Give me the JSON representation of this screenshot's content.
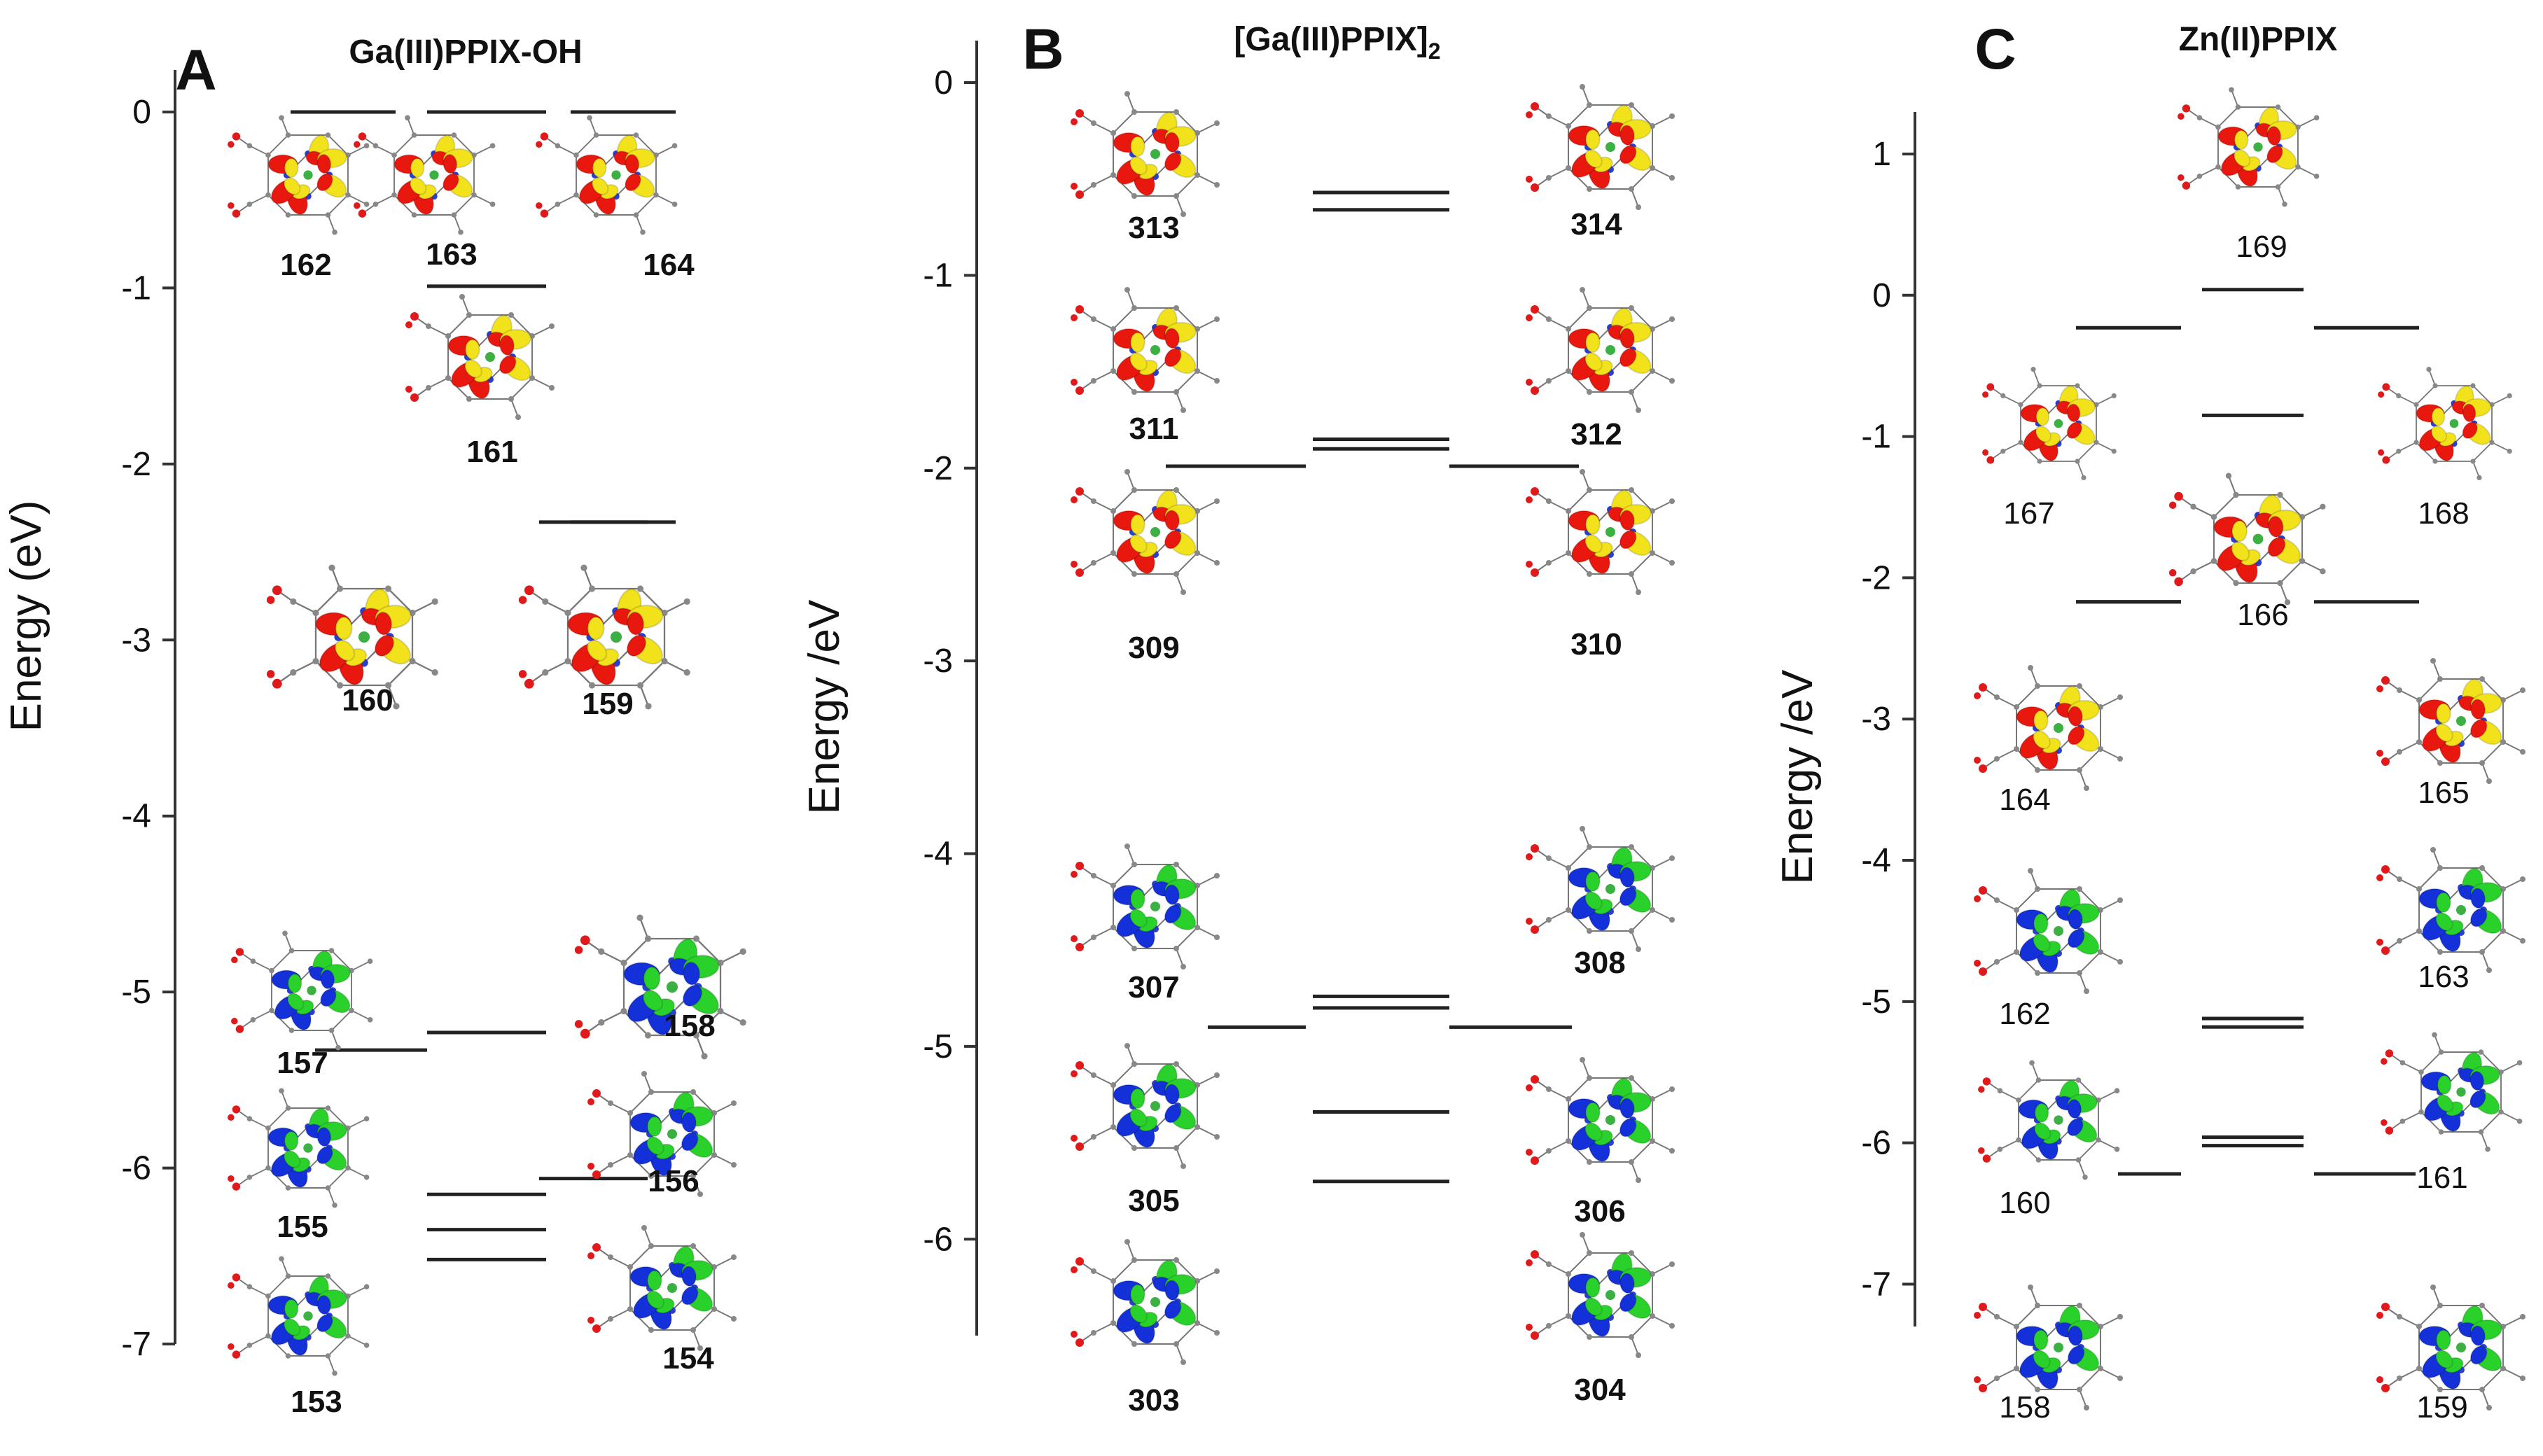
{
  "figure": {
    "panels": [
      {
        "letter": "A",
        "title": "Ga(III)PPIX-OH",
        "ylabel": "Energy (eV)",
        "ylim": [
          -7,
          0
        ],
        "ticks": [
          0,
          -1,
          -2,
          -3,
          -4,
          -5,
          -6,
          -7
        ],
        "tick_labels": [
          "0",
          "-1",
          "-2",
          "-3",
          "-4",
          "-5",
          "-6",
          "-7"
        ],
        "levels_eV": [
          0.0,
          -0.99,
          -2.33,
          -5.23,
          -5.33,
          -6.06,
          -6.15,
          -6.35,
          -6.52
        ],
        "orbitals": [
          {
            "id": "162",
            "type": "unoccupied"
          },
          {
            "id": "163",
            "type": "unoccupied"
          },
          {
            "id": "164",
            "type": "unoccupied"
          },
          {
            "id": "161",
            "type": "unoccupied"
          },
          {
            "id": "160",
            "type": "unoccupied"
          },
          {
            "id": "159",
            "type": "unoccupied"
          },
          {
            "id": "157",
            "type": "occupied"
          },
          {
            "id": "158",
            "type": "occupied"
          },
          {
            "id": "155",
            "type": "occupied"
          },
          {
            "id": "156",
            "type": "occupied"
          },
          {
            "id": "153",
            "type": "occupied"
          },
          {
            "id": "154",
            "type": "occupied"
          }
        ]
      },
      {
        "letter": "B",
        "title_main": "[Ga(III)PPIX]",
        "title_sub": "2",
        "ylabel": "Energy /eV",
        "ylim": [
          -6.5,
          0
        ],
        "ticks": [
          0,
          -1,
          -2,
          -3,
          -4,
          -5,
          -6
        ],
        "tick_labels": [
          "0",
          "-1",
          "-2",
          "-3",
          "-4",
          "-5",
          "-6"
        ],
        "levels_eV": [
          -0.57,
          -0.66,
          -1.85,
          -1.9,
          -1.99,
          -4.74,
          -4.8,
          -4.9,
          -5.34,
          -5.7
        ],
        "orbitals": [
          {
            "id": "313",
            "type": "unoccupied"
          },
          {
            "id": "314",
            "type": "unoccupied"
          },
          {
            "id": "311",
            "type": "unoccupied"
          },
          {
            "id": "312",
            "type": "unoccupied"
          },
          {
            "id": "309",
            "type": "unoccupied"
          },
          {
            "id": "310",
            "type": "unoccupied"
          },
          {
            "id": "307",
            "type": "occupied"
          },
          {
            "id": "308",
            "type": "occupied"
          },
          {
            "id": "305",
            "type": "occupied"
          },
          {
            "id": "306",
            "type": "occupied"
          },
          {
            "id": "303",
            "type": "occupied"
          },
          {
            "id": "304",
            "type": "occupied"
          }
        ]
      },
      {
        "letter": "C",
        "title": "Zn(II)PPIX",
        "ylabel": "Energy /eV",
        "ylim": [
          -7.3,
          1
        ],
        "ticks": [
          1,
          0,
          -1,
          -2,
          -3,
          -4,
          -5,
          -6,
          -7
        ],
        "tick_labels": [
          "1",
          "0",
          "-1",
          "-2",
          "-3",
          "-4",
          "-5",
          "-6",
          "-7"
        ],
        "levels_eV": [
          0.04,
          -0.23,
          -0.85,
          -2.17,
          -5.12,
          -5.18,
          -5.96,
          -6.02,
          -6.22
        ],
        "orbitals": [
          {
            "id": "169",
            "type": "unoccupied"
          },
          {
            "id": "167",
            "type": "unoccupied"
          },
          {
            "id": "168",
            "type": "unoccupied"
          },
          {
            "id": "166",
            "type": "unoccupied"
          },
          {
            "id": "164",
            "type": "unoccupied"
          },
          {
            "id": "165",
            "type": "unoccupied"
          },
          {
            "id": "162",
            "type": "occupied"
          },
          {
            "id": "163",
            "type": "occupied"
          },
          {
            "id": "160",
            "type": "occupied"
          },
          {
            "id": "161",
            "type": "occupied"
          },
          {
            "id": "158",
            "type": "occupied"
          },
          {
            "id": "159",
            "type": "occupied"
          }
        ]
      }
    ],
    "colors": {
      "unoccupied_lobe_a": "#e8180f",
      "unoccupied_lobe_b": "#f2e21c",
      "occupied_lobe_a": "#1430d8",
      "occupied_lobe_b": "#2bd12b",
      "level_line": "#222222",
      "axis": "#333333"
    }
  }
}
